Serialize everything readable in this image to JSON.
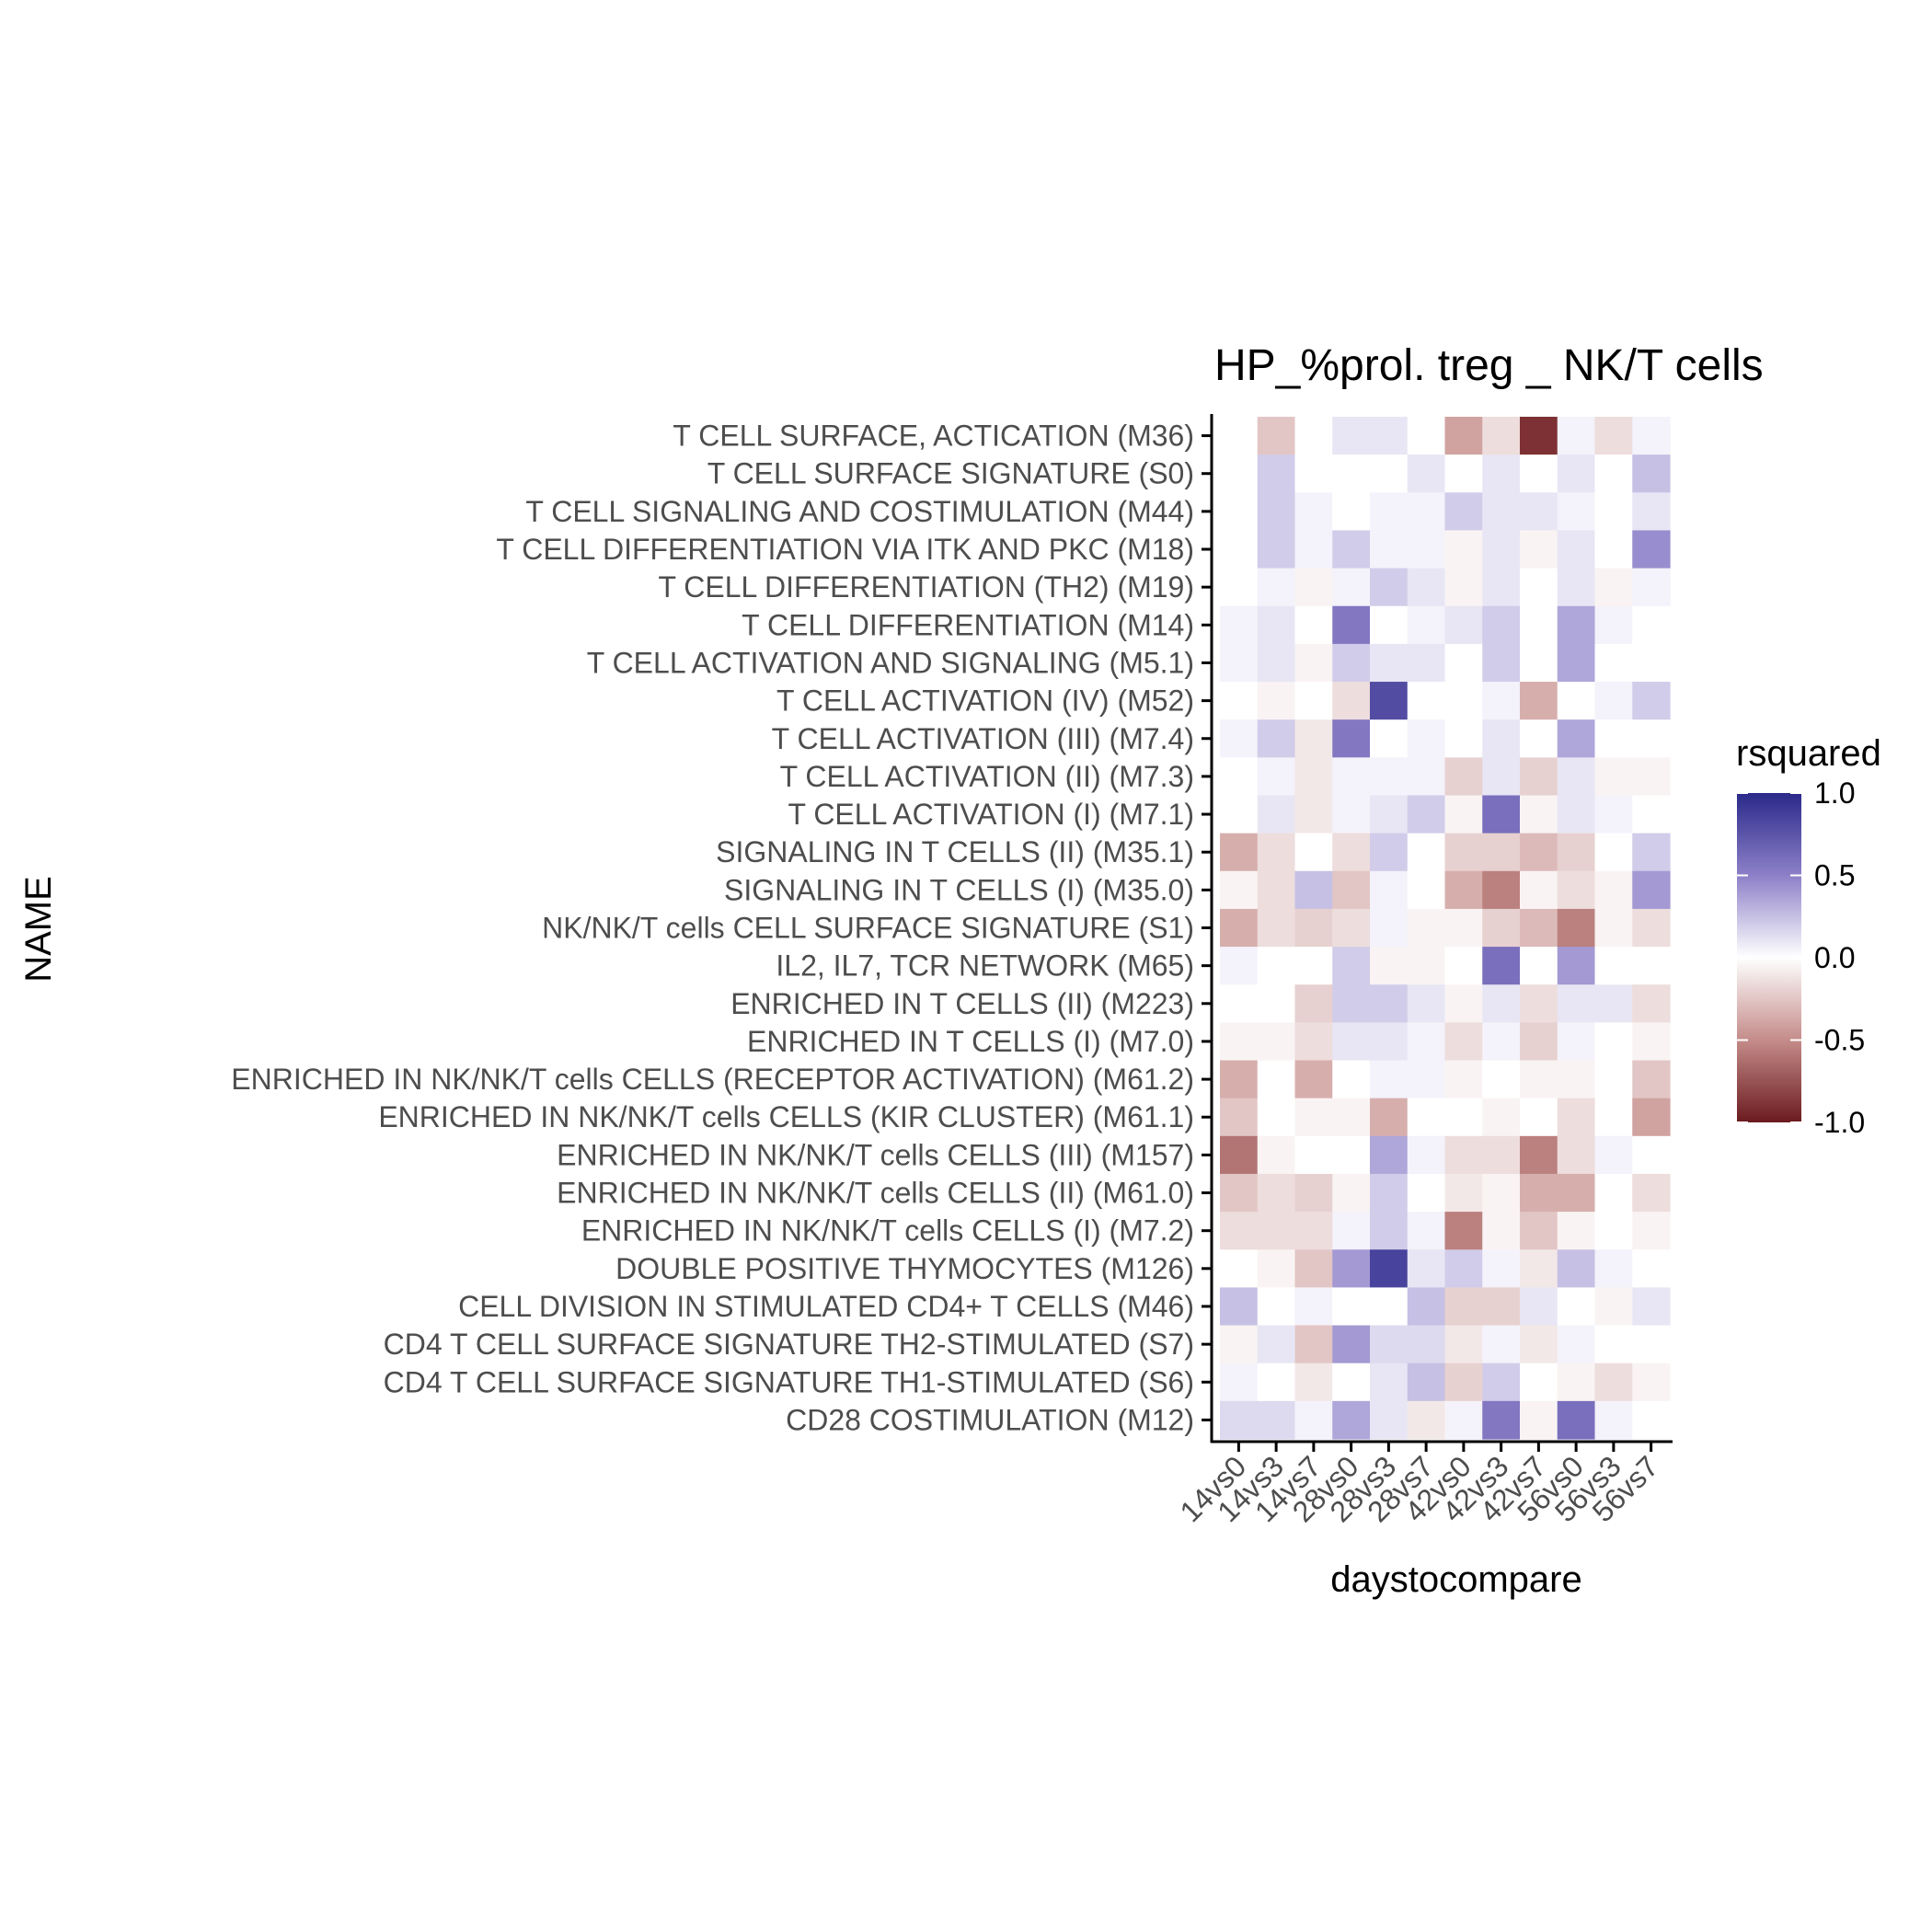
{
  "chart_data": {
    "type": "heatmap",
    "title": "HP_%prol. treg _ NK/T cells",
    "xlabel": "daystocompare",
    "ylabel": "NAME",
    "x_categories": [
      "14vs0",
      "14vs3",
      "14vs7",
      "28vs0",
      "28vs3",
      "28vs7",
      "42vs0",
      "42vs3",
      "42vs7",
      "56vs0",
      "56vs3",
      "56vs7"
    ],
    "y_categories": [
      "T CELL SURFACE, ACTICATION (M36)",
      "T CELL SURFACE SIGNATURE (S0)",
      "T CELL SIGNALING AND COSTIMULATION (M44)",
      "T CELL DIFFERENTIATION VIA ITK AND PKC (M18)",
      "T CELL DIFFERENTIATION (TH2) (M19)",
      "T CELL DIFFERENTIATION (M14)",
      "T CELL ACTIVATION AND SIGNALING (M5.1)",
      "T CELL ACTIVATION (IV) (M52)",
      "T CELL ACTIVATION (III) (M7.4)",
      "T CELL ACTIVATION (II) (M7.3)",
      "T CELL ACTIVATION (I) (M7.1)",
      "SIGNALING IN T CELLS (II) (M35.1)",
      "SIGNALING IN T CELLS (I) (M35.0)",
      "NK/NK/T cells CELL SURFACE SIGNATURE (S1)",
      "IL2, IL7, TCR NETWORK (M65)",
      "ENRICHED IN T CELLS (II) (M223)",
      "ENRICHED IN T CELLS (I) (M7.0)",
      "ENRICHED IN NK/NK/T cells CELLS (RECEPTOR ACTIVATION) (M61.2)",
      "ENRICHED IN NK/NK/T cells CELLS (KIR CLUSTER) (M61.1)",
      "ENRICHED IN NK/NK/T cells CELLS (III) (M157)",
      "ENRICHED IN NK/NK/T cells CELLS (II) (M61.0)",
      "ENRICHED IN NK/NK/T cells CELLS (I) (M7.2)",
      "DOUBLE POSITIVE THYMOCYTES (M126)",
      "CELL DIVISION IN STIMULATED CD4+ T CELLS (M46)",
      "CD4 T CELL SURFACE SIGNATURE TH2-STIMULATED (S7)",
      "CD4 T CELL SURFACE SIGNATURE TH1-STIMULATED (S6)",
      "CD28 COSTIMULATION (M12)"
    ],
    "values": [
      [
        0.0,
        -0.25,
        0.0,
        0.1,
        0.1,
        0.0,
        -0.4,
        -0.15,
        -0.9,
        0.05,
        -0.15,
        0.05
      ],
      [
        0.0,
        0.2,
        0.0,
        0.0,
        0.0,
        0.1,
        0.0,
        0.1,
        0.0,
        0.1,
        0.0,
        0.25
      ],
      [
        0.0,
        0.2,
        0.05,
        0.0,
        0.05,
        0.05,
        0.2,
        0.1,
        0.1,
        0.05,
        0.0,
        0.1
      ],
      [
        0.0,
        0.2,
        0.05,
        0.2,
        0.05,
        0.05,
        -0.05,
        0.1,
        -0.05,
        0.1,
        0.0,
        0.45
      ],
      [
        0.0,
        0.05,
        -0.05,
        0.05,
        0.2,
        0.1,
        -0.05,
        0.1,
        0.0,
        0.1,
        -0.05,
        0.05
      ],
      [
        0.05,
        0.1,
        0.0,
        0.55,
        0.0,
        0.05,
        0.1,
        0.2,
        0.0,
        0.35,
        0.05,
        0.0
      ],
      [
        0.05,
        0.1,
        -0.05,
        0.2,
        0.1,
        0.1,
        0.0,
        0.2,
        0.0,
        0.35,
        0.0,
        0.0
      ],
      [
        0.0,
        -0.05,
        0.0,
        -0.15,
        0.8,
        0.0,
        0.0,
        0.05,
        -0.35,
        0.0,
        0.05,
        0.2
      ],
      [
        0.05,
        0.2,
        -0.1,
        0.55,
        0.0,
        0.05,
        0.0,
        0.1,
        0.0,
        0.35,
        0.0,
        0.0
      ],
      [
        0.0,
        0.05,
        -0.1,
        0.05,
        0.05,
        0.05,
        -0.2,
        0.1,
        -0.2,
        0.1,
        -0.05,
        -0.05
      ],
      [
        0.0,
        0.1,
        -0.1,
        0.05,
        0.1,
        0.2,
        -0.05,
        0.6,
        -0.05,
        0.1,
        0.05,
        0.0
      ],
      [
        -0.35,
        -0.15,
        0.0,
        -0.15,
        0.2,
        0.0,
        -0.2,
        -0.2,
        -0.3,
        -0.2,
        0.0,
        0.2
      ],
      [
        -0.05,
        -0.15,
        0.25,
        -0.25,
        0.05,
        0.0,
        -0.35,
        -0.55,
        -0.05,
        -0.15,
        -0.05,
        0.4
      ],
      [
        -0.35,
        -0.15,
        -0.2,
        -0.15,
        0.05,
        -0.05,
        -0.05,
        -0.2,
        -0.3,
        -0.55,
        -0.05,
        -0.15
      ],
      [
        0.05,
        0.0,
        0.0,
        0.2,
        -0.05,
        -0.05,
        0.0,
        0.6,
        0.0,
        0.4,
        0.0,
        0.0
      ],
      [
        0.0,
        0.0,
        -0.2,
        0.2,
        0.2,
        0.1,
        -0.05,
        0.1,
        -0.15,
        0.1,
        0.1,
        -0.15
      ],
      [
        -0.05,
        -0.05,
        -0.15,
        0.1,
        0.1,
        0.05,
        -0.15,
        0.05,
        -0.2,
        0.05,
        0.0,
        -0.05
      ],
      [
        -0.35,
        0.0,
        -0.35,
        0.0,
        0.05,
        0.05,
        -0.05,
        0.0,
        -0.05,
        -0.05,
        0.0,
        -0.25
      ],
      [
        -0.25,
        0.0,
        -0.05,
        -0.05,
        -0.35,
        0.0,
        0.0,
        -0.05,
        0.0,
        -0.15,
        0.0,
        -0.4
      ],
      [
        -0.6,
        -0.05,
        0.0,
        0.0,
        0.35,
        0.05,
        -0.15,
        -0.15,
        -0.55,
        -0.15,
        0.05,
        0.0
      ],
      [
        -0.25,
        -0.15,
        -0.2,
        -0.05,
        0.2,
        0.0,
        -0.1,
        -0.05,
        -0.35,
        -0.35,
        0.0,
        -0.15
      ],
      [
        -0.15,
        -0.15,
        -0.15,
        0.05,
        0.2,
        0.05,
        -0.55,
        -0.05,
        -0.25,
        -0.05,
        0.0,
        -0.05
      ],
      [
        0.0,
        -0.05,
        -0.25,
        0.4,
        0.85,
        0.1,
        0.2,
        0.05,
        -0.1,
        0.25,
        0.05,
        0.0
      ],
      [
        0.25,
        0.0,
        0.05,
        0.0,
        0.0,
        0.25,
        -0.2,
        -0.2,
        0.1,
        0.0,
        -0.05,
        0.1
      ],
      [
        -0.05,
        0.1,
        -0.25,
        0.4,
        0.15,
        0.15,
        -0.1,
        0.05,
        -0.1,
        0.05,
        0.0,
        0.0
      ],
      [
        0.05,
        0.0,
        -0.1,
        0.0,
        0.1,
        0.25,
        -0.2,
        0.2,
        0.0,
        -0.05,
        -0.15,
        -0.05
      ],
      [
        0.15,
        0.15,
        0.05,
        0.35,
        0.1,
        -0.1,
        0.05,
        0.55,
        -0.05,
        0.6,
        0.05,
        0.0
      ]
    ],
    "legend": {
      "title": "rsquared",
      "ticks": [
        "1.0",
        "0.5",
        "0.0",
        "-0.5",
        "-1.0"
      ],
      "tick_values": [
        1.0,
        0.5,
        0.0,
        -0.5,
        -1.0
      ],
      "range": [
        -1.0,
        1.0
      ],
      "placement": "right"
    },
    "colors": {
      "low": "#67001f",
      "mid": "#ffffff",
      "high": "#2d1e8b",
      "low_end": "#6b1a1e",
      "high_end": "#2a2a8a"
    },
    "grid": false
  }
}
